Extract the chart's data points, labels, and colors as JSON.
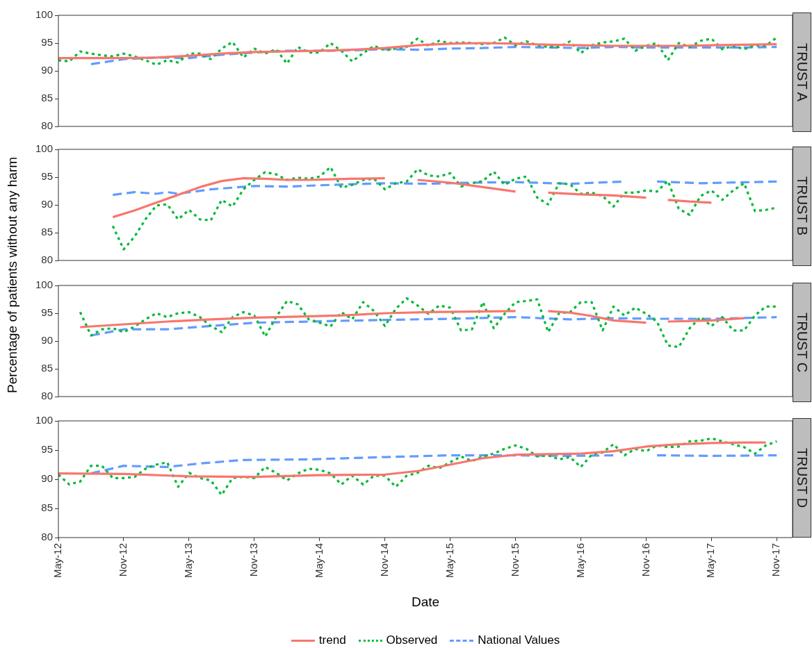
{
  "chart_data": [
    {
      "type": "line",
      "title": "TRUST A",
      "ylabel": "Percentage of patients without any harm",
      "tick_labels": "y",
      "legend": "bottom",
      "x": [
        "2012-05",
        "2012-06",
        "2012-07",
        "2012-08",
        "2012-09",
        "2012-10",
        "2012-11",
        "2012-12",
        "2013-01",
        "2013-02",
        "2013-03",
        "2013-04",
        "2013-05",
        "2013-06",
        "2013-07",
        "2013-08",
        "2013-09",
        "2013-10",
        "2013-11",
        "2013-12",
        "2014-01",
        "2014-02",
        "2014-03",
        "2014-04",
        "2014-05",
        "2014-06",
        "2014-07",
        "2014-08",
        "2014-09",
        "2014-10",
        "2014-11",
        "2014-12",
        "2015-01",
        "2015-02",
        "2015-03",
        "2015-04",
        "2015-05",
        "2015-06",
        "2015-07",
        "2015-08",
        "2015-09",
        "2015-10",
        "2015-11",
        "2015-12",
        "2016-01",
        "2016-02",
        "2016-03",
        "2016-04",
        "2016-05",
        "2016-06",
        "2016-07",
        "2016-08",
        "2016-09",
        "2016-10",
        "2016-11",
        "2016-12",
        "2017-01",
        "2017-02",
        "2017-03",
        "2017-04",
        "2017-05",
        "2017-06",
        "2017-07",
        "2017-08",
        "2017-09",
        "2017-10",
        "2017-11"
      ],
      "xlim": [
        "2012-05",
        "2017-12-15"
      ],
      "ylim": [
        80,
        100
      ],
      "yticks": [
        80,
        85,
        90,
        95,
        100
      ],
      "series": [
        {
          "name": "trend",
          "color": "#f8766d",
          "line_style": "solid",
          "x": [
            "2012-05",
            "2012-08",
            "2012-11",
            "2013-02",
            "2013-05",
            "2013-08",
            "2013-11",
            "2014-02",
            "2014-05",
            "2014-08",
            "2014-11",
            "2015-02",
            "2015-05",
            "2015-08",
            "2015-11",
            "2016-02",
            "2016-05",
            "2016-08",
            "2016-11",
            "2017-02",
            "2017-05",
            "2017-08",
            "2017-11"
          ],
          "values": [
            92.3,
            92.3,
            92.3,
            92.4,
            92.7,
            93.1,
            93.4,
            93.5,
            93.6,
            93.8,
            94.1,
            94.6,
            94.9,
            95.0,
            94.9,
            94.7,
            94.6,
            94.5,
            94.5,
            94.5,
            94.6,
            94.7,
            94.8
          ]
        },
        {
          "name": "Observed",
          "color": "#00ba38",
          "line_style": "dotted",
          "values": [
            91.9,
            91.7,
            93.5,
            93.1,
            92.8,
            92.6,
            93.1,
            92.6,
            91.9,
            91.1,
            91.9,
            91.5,
            93.1,
            93.1,
            92.1,
            94.0,
            95.2,
            92.4,
            94.0,
            93.1,
            93.9,
            91.3,
            94.3,
            93.3,
            93.3,
            95.0,
            93.6,
            91.7,
            93.2,
            94.5,
            93.7,
            94.0,
            94.3,
            95.8,
            94.5,
            95.4,
            95.0,
            95.1,
            95.0,
            94.8,
            95.0,
            96.0,
            94.6,
            95.3,
            94.6,
            94.3,
            94.3,
            95.3,
            93.2,
            94.6,
            95.1,
            95.3,
            95.8,
            93.6,
            94.5,
            95.0,
            91.9,
            95.0,
            94.3,
            95.4,
            95.8,
            93.9,
            94.5,
            93.9,
            94.6,
            94.5,
            96.0
          ]
        },
        {
          "name": "National Values",
          "color": "#619cff",
          "line_style": "dashed",
          "x": [
            "2012-08",
            "2012-11",
            "2013-02",
            "2013-05",
            "2013-08",
            "2013-11",
            "2014-02",
            "2014-05",
            "2014-08",
            "2014-11",
            "2015-02",
            "2015-05",
            "2015-08",
            "2015-11",
            "2016-02",
            "2016-05",
            "2016-08",
            "2016-11",
            "2017-02",
            "2017-05",
            "2017-08",
            "2017-11"
          ],
          "values": [
            91.2,
            92.1,
            92.4,
            92.3,
            92.9,
            93.3,
            93.6,
            93.6,
            93.7,
            93.9,
            93.8,
            94.0,
            94.1,
            94.3,
            94.2,
            94.1,
            94.3,
            94.2,
            94.2,
            94.2,
            94.2,
            94.3
          ]
        }
      ]
    },
    {
      "type": "line",
      "title": "TRUST B",
      "tick_labels": "y",
      "x": [
        "2012-10",
        "2012-11",
        "2012-12",
        "2013-01",
        "2013-02",
        "2013-03",
        "2013-04",
        "2013-05",
        "2013-06",
        "2013-07",
        "2013-08",
        "2013-09",
        "2013-10",
        "2013-11",
        "2013-12",
        "2014-01",
        "2014-02",
        "2014-03",
        "2014-04",
        "2014-05",
        "2014-06",
        "2014-07",
        "2014-08",
        "2014-09",
        "2014-10",
        "2014-11",
        "2014-12",
        "2015-01",
        "2015-02",
        "2015-03",
        "2015-04",
        "2015-05",
        "2015-06",
        "2015-07",
        "2015-08",
        "2015-09",
        "2015-10",
        "2015-11",
        "2015-12",
        "2016-01",
        "2016-02",
        "2016-03",
        "2016-04",
        "2016-05",
        "2016-06",
        "2016-07",
        "2016-08",
        "2016-09",
        "2016-10",
        "2016-11",
        "2016-12",
        "2017-01",
        "2017-02",
        "2017-03",
        "2017-04",
        "2017-05",
        "2017-06",
        "2017-07",
        "2017-08",
        "2017-09",
        "2017-10",
        "2017-11"
      ],
      "xlim": [
        "2012-05",
        "2017-12-15"
      ],
      "ylim": [
        80,
        100
      ],
      "yticks": [
        80,
        85,
        90,
        95,
        100
      ],
      "series": [
        {
          "color": "#f8766d",
          "line_style": "solid",
          "x": [
            "2012-10",
            "2012-12",
            "2013-02",
            "2013-04",
            "2013-06",
            "2013-08",
            "2013-10",
            "2013-12",
            "2014-02",
            "2014-04",
            "2014-06",
            "2014-08",
            "2014-11",
            "2014-12",
            "2015-02",
            "2015-05",
            "2015-08",
            "2015-11",
            "2016-01",
            "2016-02",
            "2016-05",
            "2016-08",
            "2016-11",
            "2016-12",
            "2017-01",
            "2017-03",
            "2017-05"
          ],
          "values": [
            87.8,
            89.0,
            90.4,
            91.8,
            93.2,
            94.3,
            94.8,
            94.7,
            94.5,
            94.5,
            94.6,
            94.7,
            94.8,
            null,
            94.5,
            94.0,
            93.2,
            92.4,
            null,
            92.2,
            91.9,
            91.7,
            91.3,
            null,
            90.9,
            90.6,
            90.4
          ]
        },
        {
          "color": "#00ba38",
          "line_style": "dotted",
          "values": [
            86.2,
            82.0,
            84.3,
            87.4,
            89.9,
            90.1,
            87.4,
            89.1,
            87.4,
            87.2,
            90.9,
            89.7,
            92.8,
            94.5,
            95.9,
            95.5,
            94.5,
            94.9,
            94.7,
            95.1,
            96.8,
            93.1,
            93.6,
            94.5,
            94.7,
            92.8,
            93.9,
            94.2,
            96.4,
            95.3,
            95.1,
            95.7,
            93.3,
            93.9,
            94.3,
            96.0,
            93.6,
            94.7,
            95.1,
            91.3,
            90.1,
            93.9,
            93.7,
            92.0,
            92.2,
            91.6,
            89.7,
            92.2,
            92.2,
            92.6,
            92.4,
            94.3,
            89.3,
            88.2,
            91.6,
            92.6,
            90.9,
            92.6,
            93.9,
            88.9,
            89.1,
            89.5
          ]
        },
        {
          "color": "#619cff",
          "line_style": "dashed",
          "x": [
            "2012-10",
            "2012-12",
            "2013-02",
            "2013-03",
            "2013-04",
            "2013-07",
            "2013-11",
            "2014-02",
            "2014-06",
            "2014-11",
            "2015-03",
            "2015-07",
            "2015-11",
            "2016-04",
            "2016-09",
            "2016-10",
            "2016-12",
            "2017-04",
            "2017-11"
          ],
          "values": [
            91.8,
            92.3,
            92.0,
            92.3,
            92.0,
            92.8,
            93.4,
            93.3,
            93.6,
            93.9,
            93.8,
            94.0,
            94.1,
            93.8,
            94.2,
            null,
            94.2,
            93.9,
            94.2
          ]
        }
      ]
    },
    {
      "type": "line",
      "title": "TRUST C",
      "tick_labels": "y",
      "x": [
        "2012-07",
        "2012-08",
        "2012-09",
        "2012-10",
        "2012-11",
        "2012-12",
        "2013-01",
        "2013-02",
        "2013-03",
        "2013-04",
        "2013-05",
        "2013-06",
        "2013-07",
        "2013-08",
        "2013-09",
        "2013-10",
        "2013-11",
        "2013-12",
        "2014-01",
        "2014-02",
        "2014-03",
        "2014-04",
        "2014-05",
        "2014-06",
        "2014-07",
        "2014-08",
        "2014-09",
        "2014-10",
        "2014-11",
        "2014-12",
        "2015-01",
        "2015-02",
        "2015-03",
        "2015-04",
        "2015-05",
        "2015-06",
        "2015-07",
        "2015-08",
        "2015-09",
        "2015-10",
        "2015-11",
        "2015-12",
        "2016-01",
        "2016-02",
        "2016-03",
        "2016-04",
        "2016-05",
        "2016-06",
        "2016-07",
        "2016-08",
        "2016-09",
        "2016-10",
        "2016-11",
        "2016-12",
        "2017-01",
        "2017-02",
        "2017-03",
        "2017-04",
        "2017-05",
        "2017-06",
        "2017-07",
        "2017-08",
        "2017-09",
        "2017-10",
        "2017-11"
      ],
      "xlim": [
        "2012-05",
        "2017-12-15"
      ],
      "ylim": [
        80,
        100
      ],
      "yticks": [
        80,
        85,
        90,
        95,
        100
      ],
      "series": [
        {
          "color": "#f8766d",
          "line_style": "solid",
          "x": [
            "2012-07",
            "2012-11",
            "2013-03",
            "2013-07",
            "2013-11",
            "2014-03",
            "2014-07",
            "2014-11",
            "2015-03",
            "2015-07",
            "2015-11",
            "2016-01",
            "2016-02",
            "2016-04",
            "2016-06",
            "2016-08",
            "2016-11",
            "2016-12",
            "2017-01",
            "2017-05",
            "2017-08"
          ],
          "values": [
            92.5,
            93.0,
            93.5,
            93.9,
            94.2,
            94.4,
            94.6,
            95.0,
            95.2,
            95.3,
            95.4,
            null,
            95.4,
            95.1,
            94.5,
            93.7,
            93.3,
            null,
            93.5,
            93.7,
            94.1
          ]
        },
        {
          "color": "#00ba38",
          "line_style": "dotted",
          "values": [
            95.2,
            91.0,
            92.1,
            92.3,
            91.6,
            92.6,
            93.9,
            95.0,
            94.3,
            95.0,
            95.2,
            94.3,
            92.7,
            91.6,
            94.3,
            95.2,
            94.6,
            90.8,
            94.3,
            97.2,
            96.6,
            93.9,
            93.3,
            92.6,
            95.2,
            93.9,
            97.0,
            95.4,
            92.7,
            95.8,
            97.7,
            96.4,
            94.9,
            96.4,
            96.0,
            91.9,
            92.1,
            97.0,
            92.3,
            94.9,
            97.0,
            97.2,
            97.5,
            91.6,
            95.0,
            95.2,
            97.0,
            97.0,
            91.9,
            96.2,
            94.6,
            96.0,
            94.9,
            93.5,
            89.2,
            88.9,
            92.3,
            94.3,
            92.7,
            94.3,
            91.9,
            91.9,
            94.6,
            96.2,
            96.2
          ]
        },
        {
          "color": "#619cff",
          "line_style": "dashed",
          "x": [
            "2012-08",
            "2012-11",
            "2013-03",
            "2013-07",
            "2013-11",
            "2014-04",
            "2014-11",
            "2015-05",
            "2015-11",
            "2016-04",
            "2016-08",
            "2016-12",
            "2017-05",
            "2017-11"
          ],
          "values": [
            91.0,
            92.1,
            92.1,
            92.7,
            93.3,
            93.5,
            93.8,
            94.0,
            94.3,
            93.9,
            94.1,
            94.0,
            94.0,
            94.3
          ]
        }
      ]
    },
    {
      "type": "line",
      "title": "TRUST D",
      "xlabel": "Date",
      "x": [
        "2012-05",
        "2012-06",
        "2012-07",
        "2012-08",
        "2012-09",
        "2012-10",
        "2012-11",
        "2012-12",
        "2013-01",
        "2013-02",
        "2013-03",
        "2013-04",
        "2013-05",
        "2013-06",
        "2013-07",
        "2013-08",
        "2013-09",
        "2013-10",
        "2013-11",
        "2013-12",
        "2014-01",
        "2014-02",
        "2014-03",
        "2014-04",
        "2014-05",
        "2014-06",
        "2014-07",
        "2014-08",
        "2014-09",
        "2014-10",
        "2014-11",
        "2014-12",
        "2015-01",
        "2015-02",
        "2015-03",
        "2015-04",
        "2015-05",
        "2015-06",
        "2015-07",
        "2015-08",
        "2015-09",
        "2015-10",
        "2015-11",
        "2015-12",
        "2016-01",
        "2016-02",
        "2016-03",
        "2016-04",
        "2016-05",
        "2016-06",
        "2016-07",
        "2016-08",
        "2016-09",
        "2016-10",
        "2016-11",
        "2016-12",
        "2017-01",
        "2017-02",
        "2017-03",
        "2017-04",
        "2017-05",
        "2017-06",
        "2017-07",
        "2017-08",
        "2017-09",
        "2017-10",
        "2017-11"
      ],
      "xlim": [
        "2012-05",
        "2017-12-15"
      ],
      "ylim": [
        80,
        100
      ],
      "yticks": [
        80,
        85,
        90,
        95,
        100
      ],
      "xticks": [
        {
          "value": "2012-05",
          "label": "May-12"
        },
        {
          "value": "2012-11",
          "label": "Nov-12"
        },
        {
          "value": "2013-05",
          "label": "May-13"
        },
        {
          "value": "2013-11",
          "label": "Nov-13"
        },
        {
          "value": "2014-05",
          "label": "May-14"
        },
        {
          "value": "2014-11",
          "label": "Nov-14"
        },
        {
          "value": "2015-05",
          "label": "May-15"
        },
        {
          "value": "2015-11",
          "label": "Nov-15"
        },
        {
          "value": "2016-05",
          "label": "May-16"
        },
        {
          "value": "2016-11",
          "label": "Nov-16"
        },
        {
          "value": "2017-05",
          "label": "May-17"
        },
        {
          "value": "2017-11",
          "label": "Nov-17"
        }
      ],
      "series": [
        {
          "color": "#f8766d",
          "line_style": "solid",
          "x": [
            "2012-05",
            "2012-11",
            "2013-05",
            "2013-11",
            "2014-05",
            "2014-11",
            "2015-02",
            "2015-05",
            "2015-08",
            "2015-11",
            "2016-02",
            "2016-05",
            "2016-08",
            "2016-11",
            "2017-02",
            "2017-05",
            "2017-08",
            "2017-10"
          ],
          "values": [
            91.0,
            90.9,
            90.5,
            90.4,
            90.7,
            90.8,
            91.4,
            92.5,
            93.6,
            94.2,
            94.3,
            94.4,
            94.8,
            95.6,
            96.0,
            96.2,
            96.3,
            96.3
          ]
        },
        {
          "color": "#00ba38",
          "line_style": "dotted",
          "values": [
            90.8,
            89.1,
            89.6,
            92.3,
            92.3,
            90.2,
            90.2,
            90.4,
            91.8,
            92.5,
            92.9,
            88.7,
            91.1,
            90.2,
            89.8,
            87.3,
            90.2,
            90.4,
            90.2,
            92.1,
            91.1,
            89.8,
            91.0,
            91.8,
            91.6,
            91.0,
            89.1,
            90.6,
            89.1,
            90.6,
            90.6,
            88.7,
            90.6,
            91.1,
            92.3,
            91.9,
            92.9,
            93.9,
            93.1,
            93.9,
            94.4,
            95.2,
            95.8,
            95.2,
            93.9,
            94.1,
            93.4,
            93.8,
            92.1,
            94.2,
            94.6,
            96.0,
            94.1,
            95.2,
            94.8,
            95.8,
            95.5,
            95.6,
            96.5,
            96.6,
            97.0,
            96.5,
            96.0,
            95.5,
            94.4,
            95.8,
            96.5
          ]
        },
        {
          "color": "#619cff",
          "line_style": "dashed",
          "x": [
            "2012-08",
            "2012-11",
            "2013-03",
            "2013-06",
            "2013-10",
            "2014-04",
            "2014-11",
            "2015-05",
            "2015-11",
            "2016-04",
            "2016-08",
            "2016-09",
            "2016-12",
            "2017-05",
            "2017-11"
          ],
          "values": [
            91.0,
            92.3,
            92.1,
            92.7,
            93.3,
            93.4,
            93.8,
            94.1,
            94.1,
            94.0,
            94.1,
            null,
            94.1,
            94.0,
            94.1
          ]
        }
      ]
    }
  ]
}
